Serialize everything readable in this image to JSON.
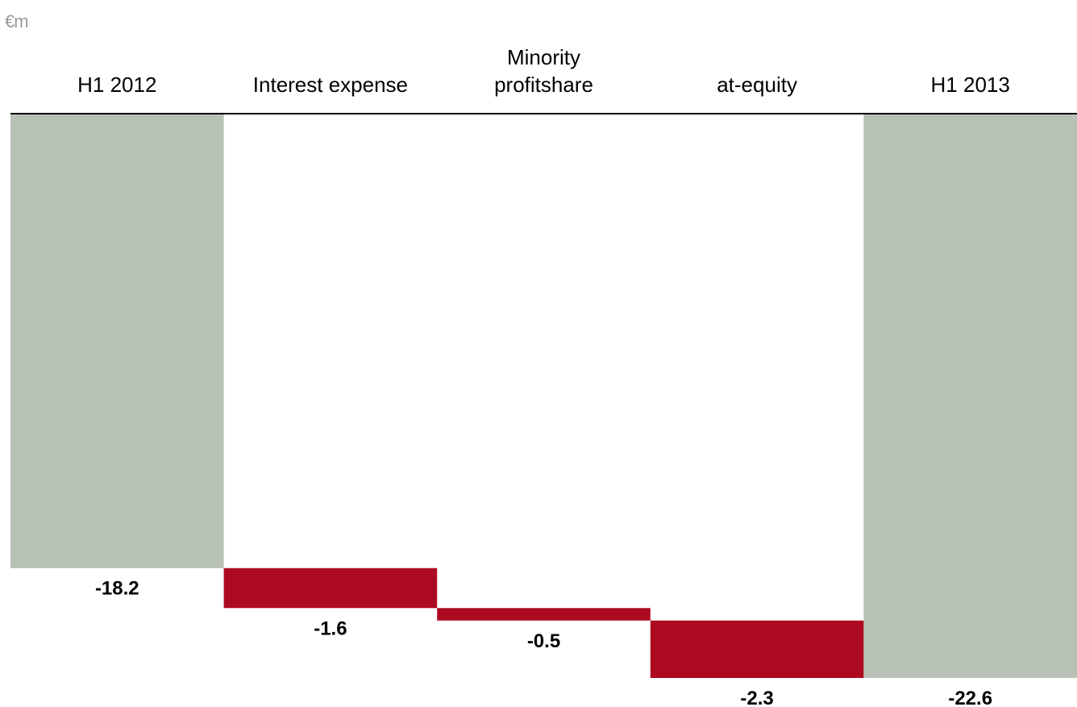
{
  "unit_label": "€m",
  "colors": {
    "total": "#b8c1b5",
    "decrease": "#ad0a22",
    "axis": "#000000"
  },
  "chart_data": {
    "type": "bar",
    "subtype": "waterfall",
    "categories": [
      [
        "H1 2012"
      ],
      [
        "Interest expense"
      ],
      [
        "Minority",
        "profitshare"
      ],
      [
        "at-equity"
      ],
      [
        "H1 2013"
      ]
    ],
    "values": [
      -18.2,
      -1.6,
      -0.5,
      -2.3,
      -22.6
    ],
    "value_labels": [
      "-18.2",
      "-1.6",
      "-0.5",
      "-2.3",
      "-22.6"
    ],
    "kinds": [
      "total",
      "delta",
      "delta",
      "delta",
      "total"
    ],
    "ylim": [
      -22.6,
      0
    ],
    "grid": false,
    "legend": "none",
    "title": "",
    "xlabel": "",
    "ylabel": ""
  }
}
